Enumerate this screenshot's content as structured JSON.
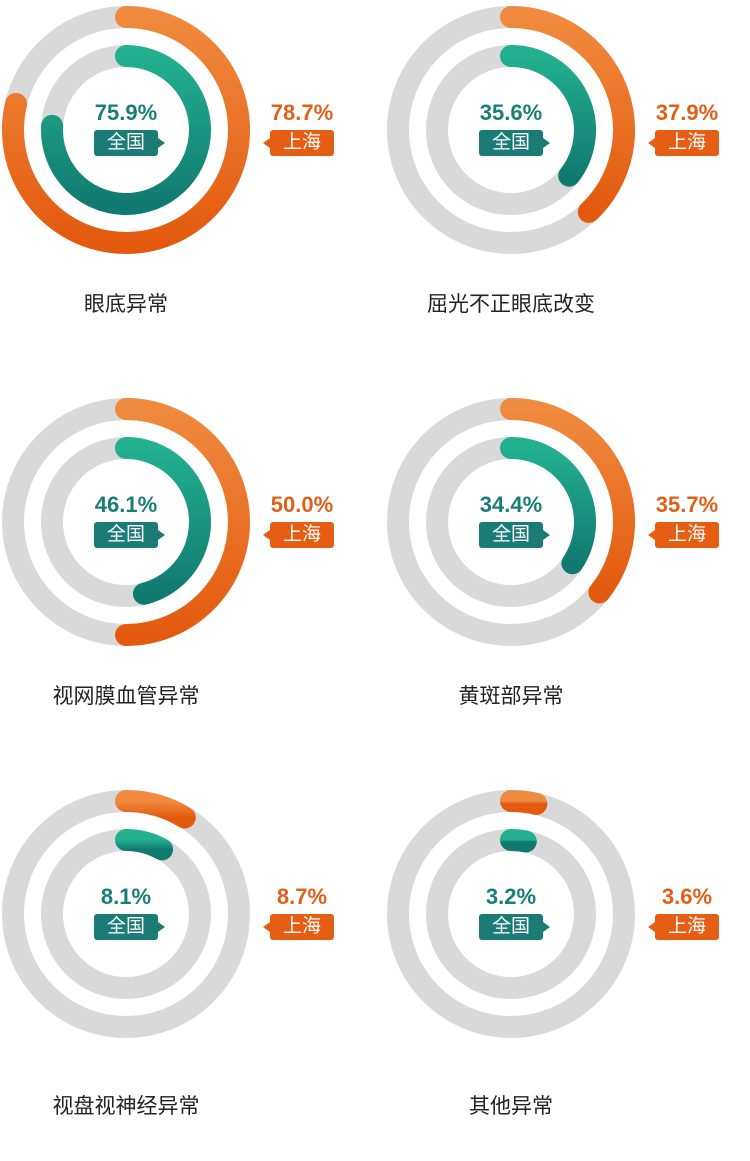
{
  "colors": {
    "track": "#d9d9d9",
    "national_start": "#22b08f",
    "national_end": "#117a70",
    "shanghai_start": "#f08a3e",
    "shanghai_end": "#e35a0e"
  },
  "chart_data": {
    "type": "radial-bar",
    "series": [
      {
        "name": "全国",
        "values": [
          75.9,
          35.6,
          46.1,
          34.4,
          8.1,
          3.2
        ]
      },
      {
        "name": "上海",
        "values": [
          78.7,
          37.9,
          50.0,
          35.7,
          8.7,
          3.6
        ]
      }
    ],
    "panels": [
      {
        "category": "眼底异常",
        "national": 75.9,
        "national_text": "75.9%",
        "shanghai": 78.7,
        "shanghai_text": "78.7%"
      },
      {
        "category": "屈光不正眼底改变",
        "national": 35.6,
        "national_text": "35.6%",
        "shanghai": 37.9,
        "shanghai_text": "37.9%"
      },
      {
        "category": "视网膜血管异常",
        "national": 46.1,
        "national_text": "46.1%",
        "shanghai": 50.0,
        "shanghai_text": "50.0%"
      },
      {
        "category": "黄斑部异常",
        "national": 34.4,
        "national_text": "34.4%",
        "shanghai": 35.7,
        "shanghai_text": "35.7%"
      },
      {
        "category": "视盘视神经异常",
        "national": 8.1,
        "national_text": "8.1%",
        "shanghai": 8.7,
        "shanghai_text": "8.7%"
      },
      {
        "category": "其他异常",
        "national": 3.2,
        "national_text": "3.2%",
        "shanghai": 3.6,
        "shanghai_text": "3.6%"
      }
    ]
  }
}
